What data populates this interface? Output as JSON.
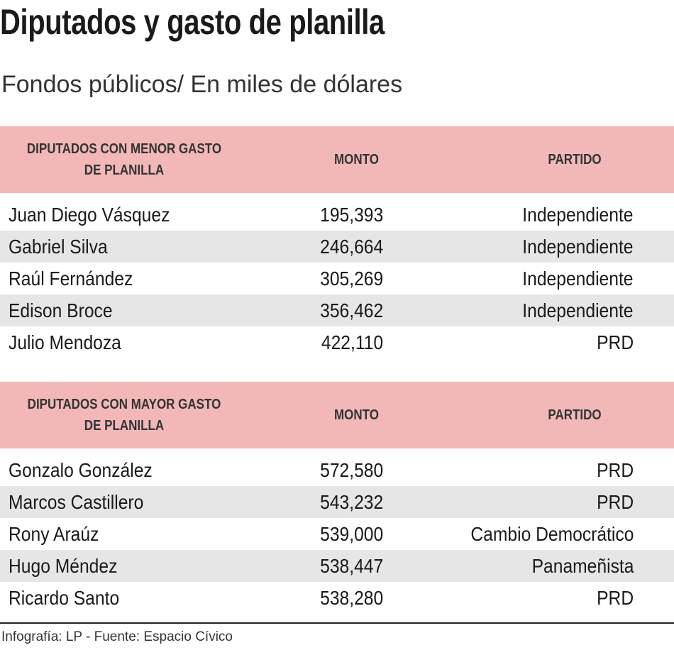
{
  "title": "Diputados y gasto de planilla",
  "subtitle": "Fondos públicos/ En miles de dólares",
  "tables": [
    {
      "header": [
        "DIPUTADOS CON MENOR GASTO DE PLANILLA",
        "MONTO",
        "PARTIDO"
      ],
      "rows": [
        [
          "Juan Diego Vásquez",
          "195,393",
          "Independiente"
        ],
        [
          "Gabriel Silva",
          "246,664",
          "Independiente"
        ],
        [
          "Raúl Fernández",
          "305,269",
          "Independiente"
        ],
        [
          "Edison Broce",
          "356,462",
          "Independiente"
        ],
        [
          "Julio Mendoza",
          "422,110",
          "PRD"
        ]
      ]
    },
    {
      "header": [
        "DIPUTADOS CON MAYOR GASTO DE PLANILLA",
        "MONTO",
        "PARTIDO"
      ],
      "rows": [
        [
          "Gonzalo González",
          "572,580",
          "PRD"
        ],
        [
          "Marcos Castillero",
          "543,232",
          "PRD"
        ],
        [
          "Rony Araúz",
          "539,000",
          "Cambio Democrático"
        ],
        [
          "Hugo Méndez",
          "538,447",
          "Panameñista"
        ],
        [
          "Ricardo Santo",
          "538,280",
          "PRD"
        ]
      ]
    }
  ],
  "footer": "Infografía: LP - Fuente: Espacio Cívico"
}
